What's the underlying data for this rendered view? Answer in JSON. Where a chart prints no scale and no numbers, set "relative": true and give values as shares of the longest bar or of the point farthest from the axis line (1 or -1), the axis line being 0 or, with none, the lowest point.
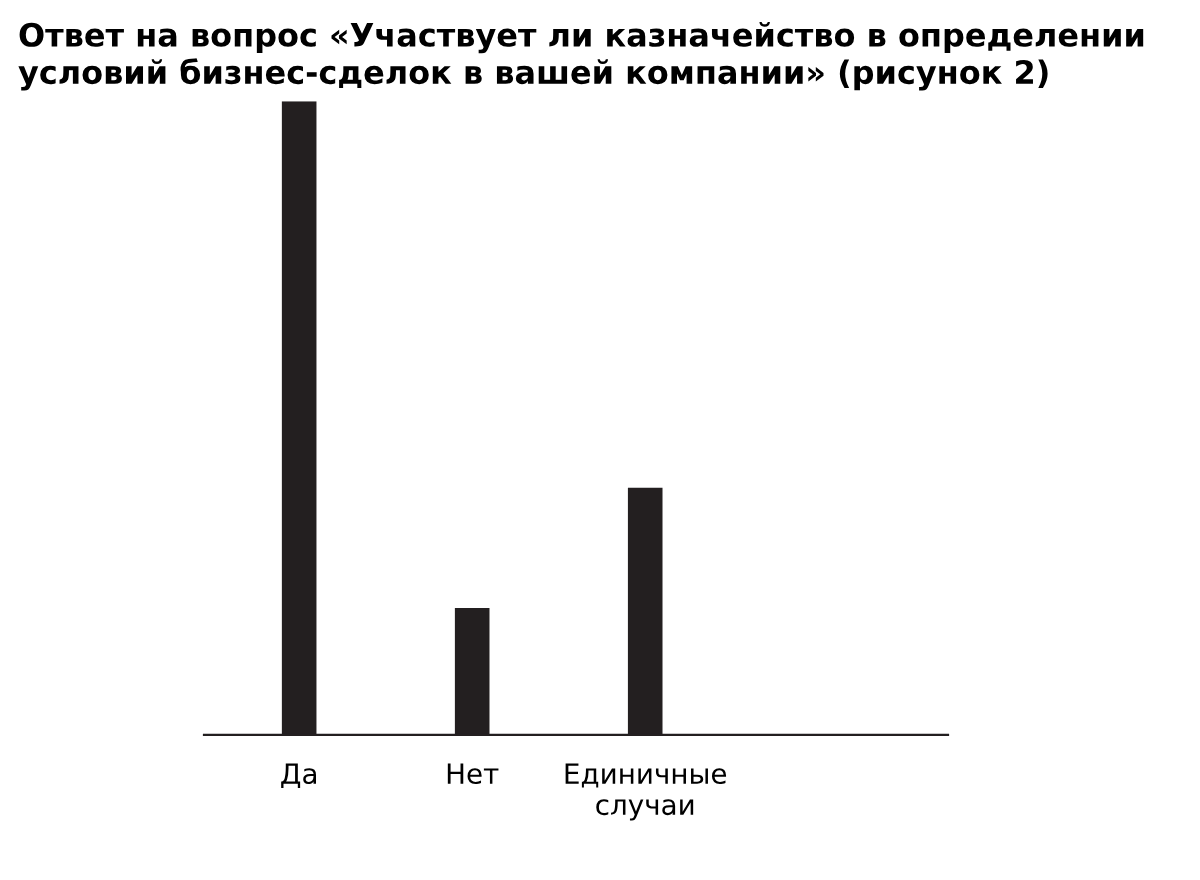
{
  "chart_data": {
    "type": "bar",
    "title": "Ответ на вопрос «Участвует ли казначейство в определении условий бизнес-сделок в вашей компании» (рисунок 2)",
    "categories": [
      "Да",
      "Нет",
      "Единичные\nслучаи"
    ],
    "values": [
      1,
      0.2,
      0.39
    ],
    "color": "#231f20",
    "relative": true,
    "grid": false,
    "legend": false
  }
}
